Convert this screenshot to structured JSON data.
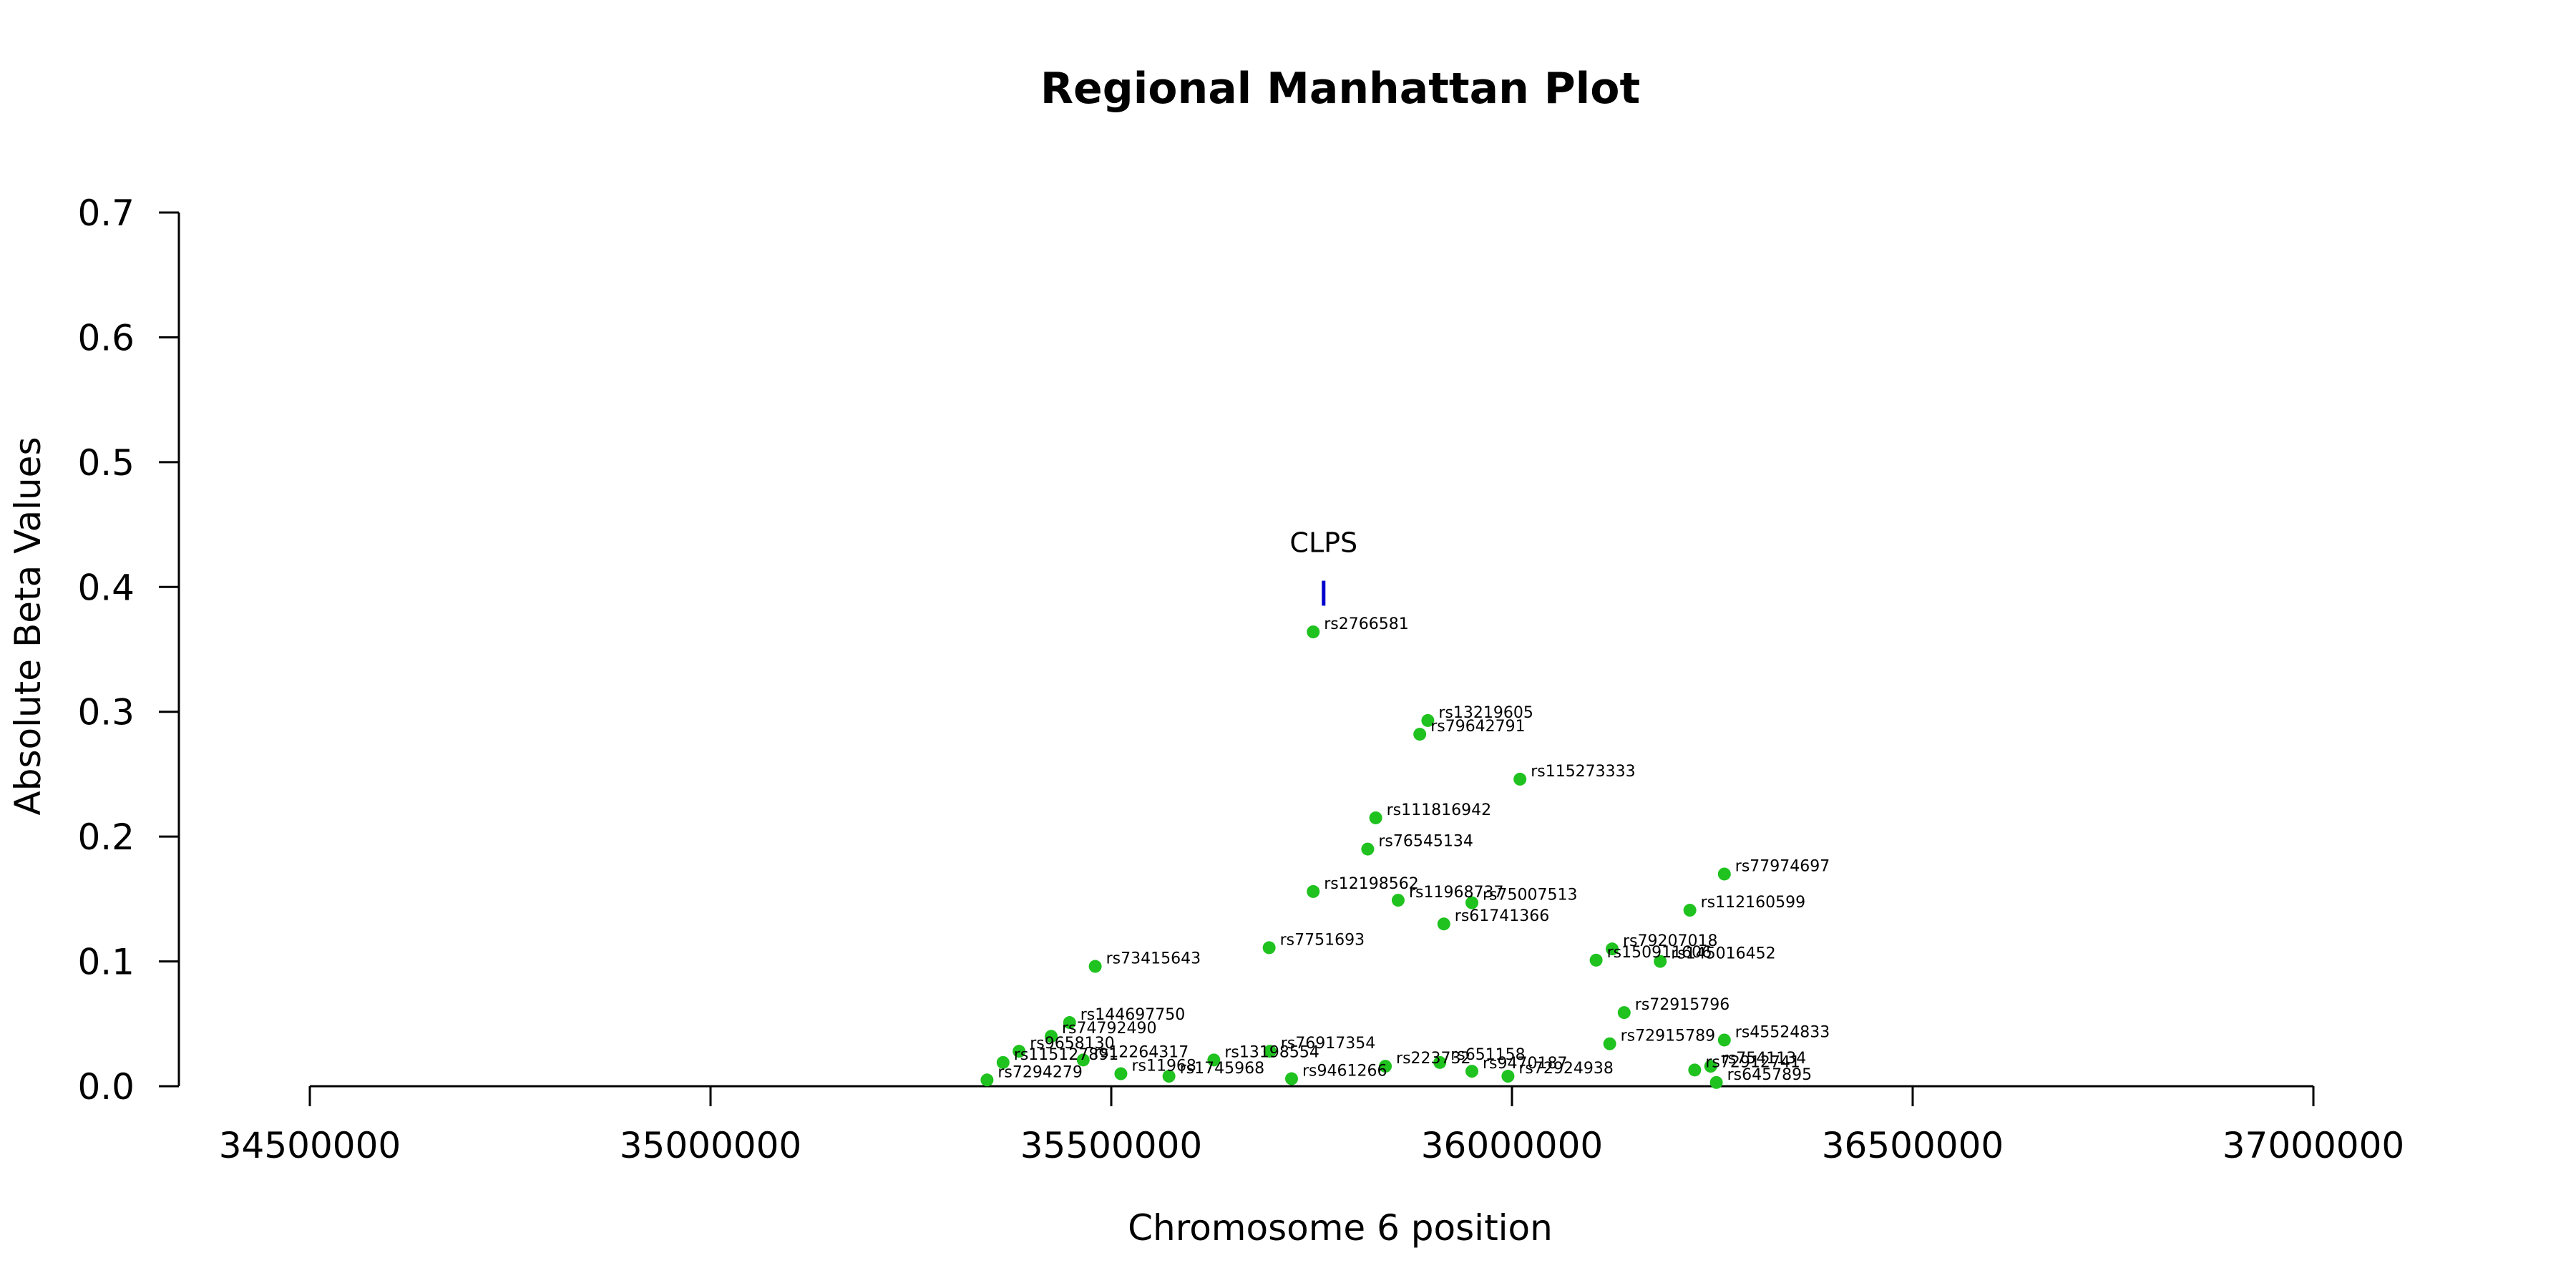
{
  "chart_data": {
    "type": "scatter",
    "title": "Regional Manhattan Plot",
    "xlabel": "Chromosome 6 position",
    "ylabel": "Absolute Beta Values",
    "xlim": [
      34500000,
      37000000
    ],
    "ylim": [
      0,
      0.7
    ],
    "xticks": [
      34500000,
      35000000,
      35500000,
      36000000,
      36500000,
      37000000
    ],
    "xtick_labels": [
      "34500000",
      "35000000",
      "35500000",
      "36000000",
      "36500000",
      "37000000"
    ],
    "yticks": [
      0.0,
      0.1,
      0.2,
      0.3,
      0.4,
      0.5,
      0.6,
      0.7
    ],
    "ytick_labels": [
      "0.0",
      "0.1",
      "0.2",
      "0.3",
      "0.4",
      "0.5",
      "0.6",
      "0.7"
    ],
    "grid": false,
    "point_color": "#1fc21f",
    "gene_marker_color": "#0000cc",
    "gene_marker": {
      "name": "CLPS",
      "x": 35765000,
      "y_range": [
        0.385,
        0.405
      ]
    },
    "points": [
      {
        "snp": "rs2766581",
        "x": 35752000,
        "y": 0.364
      },
      {
        "snp": "rs13219605",
        "x": 35895000,
        "y": 0.293
      },
      {
        "snp": "rs79642791",
        "x": 35885000,
        "y": 0.282
      },
      {
        "snp": "rs115273333",
        "x": 36010000,
        "y": 0.246
      },
      {
        "snp": "rs111816942",
        "x": 35830000,
        "y": 0.215
      },
      {
        "snp": "rs76545134",
        "x": 35820000,
        "y": 0.19
      },
      {
        "snp": "rs77974697",
        "x": 36265000,
        "y": 0.17
      },
      {
        "snp": "rs12198562",
        "x": 35752000,
        "y": 0.156
      },
      {
        "snp": "rs11968737",
        "x": 35858000,
        "y": 0.149
      },
      {
        "snp": "rs75007513",
        "x": 35950000,
        "y": 0.147
      },
      {
        "snp": "rs112160599",
        "x": 36222000,
        "y": 0.141
      },
      {
        "snp": "rs61741366",
        "x": 35915000,
        "y": 0.13
      },
      {
        "snp": "rs7751693",
        "x": 35697000,
        "y": 0.111
      },
      {
        "snp": "rs79207018",
        "x": 36125000,
        "y": 0.11
      },
      {
        "snp": "rs150911606",
        "x": 36105000,
        "y": 0.101
      },
      {
        "snp": "rs145016452",
        "x": 36185000,
        "y": 0.1
      },
      {
        "snp": "rs73415643",
        "x": 35480000,
        "y": 0.096
      },
      {
        "snp": "rs72915796",
        "x": 36140000,
        "y": 0.059
      },
      {
        "snp": "rs144697750",
        "x": 35448000,
        "y": 0.051
      },
      {
        "snp": "rs74792490",
        "x": 35425000,
        "y": 0.04
      },
      {
        "snp": "rs45524833",
        "x": 36265000,
        "y": 0.037
      },
      {
        "snp": "rs72915789",
        "x": 36122000,
        "y": 0.034
      },
      {
        "snp": "rs9658130",
        "x": 35385000,
        "y": 0.028
      },
      {
        "snp": "rs76917354",
        "x": 35698000,
        "y": 0.028
      },
      {
        "snp": "rs115127891",
        "x": 35365000,
        "y": 0.019
      },
      {
        "snp": "rs12264317",
        "x": 35465000,
        "y": 0.021
      },
      {
        "snp": "rs13198554",
        "x": 35628000,
        "y": 0.021
      },
      {
        "snp": "rs651158",
        "x": 35910000,
        "y": 0.019
      },
      {
        "snp": "rs7541134",
        "x": 36248000,
        "y": 0.016
      },
      {
        "snp": "rs223732",
        "x": 35842000,
        "y": 0.016
      },
      {
        "snp": "rs9470187",
        "x": 35950000,
        "y": 0.012
      },
      {
        "snp": "rs72912741",
        "x": 36228000,
        "y": 0.013
      },
      {
        "snp": "rs72924938",
        "x": 35995000,
        "y": 0.008
      },
      {
        "snp": "rs6457895",
        "x": 36255000,
        "y": 0.003
      },
      {
        "snp": "rs7294279",
        "x": 35345000,
        "y": 0.005
      },
      {
        "snp": "rs9461266",
        "x": 35725000,
        "y": 0.006
      },
      {
        "snp": "rs11968",
        "x": 35512000,
        "y": 0.01
      },
      {
        "snp": "rs1745968",
        "x": 35572000,
        "y": 0.008
      }
    ]
  }
}
